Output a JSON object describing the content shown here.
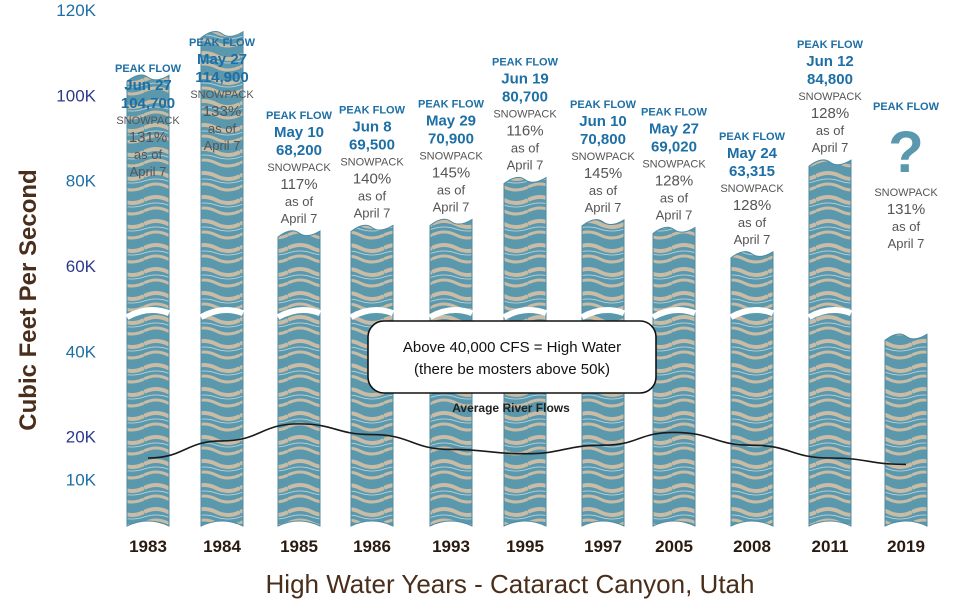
{
  "chart_data": {
    "type": "bar",
    "categories": [
      "1983",
      "1984",
      "1985",
      "1986",
      "1993",
      "1995",
      "1997",
      "2005",
      "2008",
      "2011",
      "2019"
    ],
    "values": [
      104700,
      114900,
      68200,
      69500,
      70900,
      80700,
      70800,
      69020,
      63315,
      84800,
      null
    ],
    "ylim": [
      0,
      120000
    ],
    "yticks": [
      "120K",
      "100K",
      "80K",
      "60K",
      "40K",
      "20K",
      "10K"
    ],
    "ylabel": "Cubic Feet Per Second",
    "xlabel": "High Water Years - Cataract Canyon, Utah",
    "average_line": {
      "label": "Average River Flows",
      "values": [
        15000,
        19000,
        23000,
        20500,
        17000,
        16000,
        18000,
        21000,
        18000,
        15000,
        13500
      ]
    },
    "annotation": {
      "line1": "Above 40,000 CFS = High Water",
      "line2": "(there be mosters above 50k)"
    },
    "peak_label": "PEAK FLOW",
    "snowpack_label": "SNOWPACK",
    "asof_label": "as of",
    "asof_date": "April 7",
    "unknown_mark": "?",
    "peaks": [
      {
        "date": "Jun 27",
        "flow": "104,700",
        "snowpack": "131%"
      },
      {
        "date": "May 27",
        "flow": "114,900",
        "snowpack": "133%"
      },
      {
        "date": "May 10",
        "flow": "68,200",
        "snowpack": "117%"
      },
      {
        "date": "Jun 8",
        "flow": "69,500",
        "snowpack": "140%"
      },
      {
        "date": "May 29",
        "flow": "70,900",
        "snowpack": "145%"
      },
      {
        "date": "Jun 19",
        "flow": "80,700",
        "snowpack": "116%"
      },
      {
        "date": "Jun 10",
        "flow": "70,800",
        "snowpack": "145%"
      },
      {
        "date": "May 27",
        "flow": "69,020",
        "snowpack": "128%"
      },
      {
        "date": "May 24",
        "flow": "63,315",
        "snowpack": "128%"
      },
      {
        "date": "Jun 12",
        "flow": "84,800",
        "snowpack": "128%"
      },
      {
        "date": "",
        "flow": "",
        "snowpack": "131%"
      }
    ],
    "colors": {
      "water": "#5a98ad",
      "sand": "#c9bba4",
      "text_blue": "#1d6fa5",
      "text_brown": "#4a2e1c"
    }
  }
}
